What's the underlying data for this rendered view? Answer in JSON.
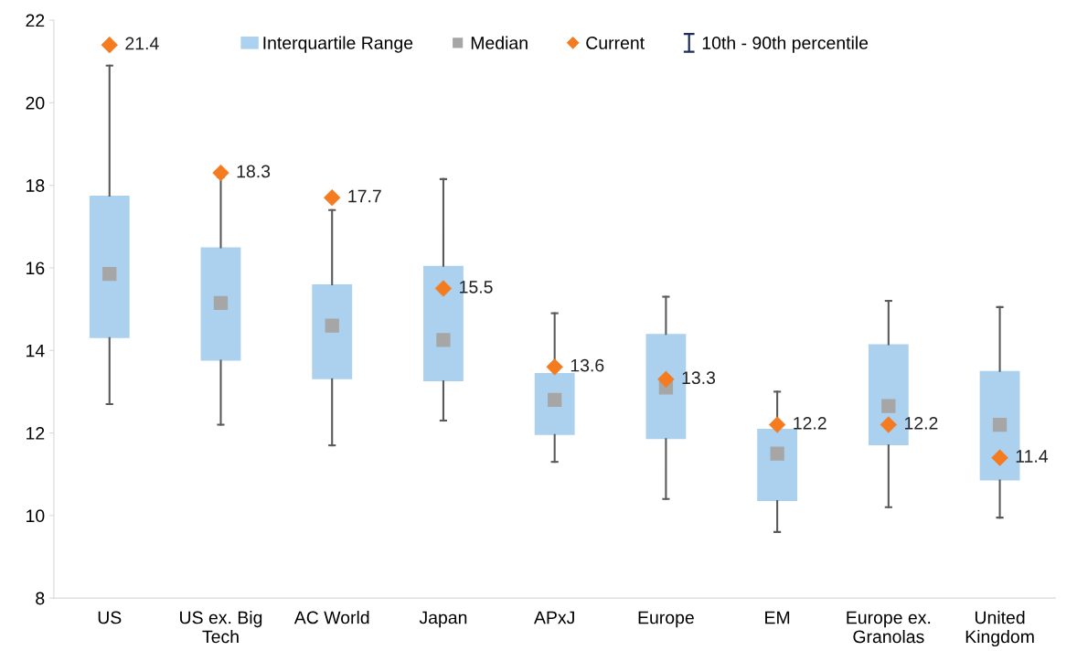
{
  "chart_data": {
    "type": "box",
    "categories": [
      "US",
      "US ex. Big\nTech",
      "AC World",
      "Japan",
      "APxJ",
      "Europe",
      "EM",
      "Europe ex.\nGranolas",
      "United\nKingdom"
    ],
    "series": [
      {
        "name": "Interquartile Range",
        "type": "box",
        "color": "#abd1ef",
        "boxes": [
          {
            "low": 12.7,
            "q1": 14.3,
            "median": 15.85,
            "q3": 17.75,
            "high": 20.9
          },
          {
            "low": 12.2,
            "q1": 13.75,
            "median": 15.15,
            "q3": 16.5,
            "high": 18.2
          },
          {
            "low": 11.7,
            "q1": 13.3,
            "median": 14.6,
            "q3": 15.6,
            "high": 17.4
          },
          {
            "low": 12.3,
            "q1": 13.25,
            "median": 14.25,
            "q3": 16.05,
            "high": 18.15
          },
          {
            "low": 11.3,
            "q1": 11.95,
            "median": 12.8,
            "q3": 13.45,
            "high": 14.9
          },
          {
            "low": 10.4,
            "q1": 11.85,
            "median": 13.1,
            "q3": 14.4,
            "high": 15.3
          },
          {
            "low": 9.6,
            "q1": 10.35,
            "median": 11.5,
            "q3": 12.1,
            "high": 13.0
          },
          {
            "low": 10.2,
            "q1": 11.7,
            "median": 12.65,
            "q3": 14.15,
            "high": 15.2
          },
          {
            "low": 9.95,
            "q1": 10.85,
            "median": 12.2,
            "q3": 13.5,
            "high": 15.05
          }
        ]
      },
      {
        "name": "Current",
        "type": "scatter",
        "color": "#f47b20",
        "marker": "diamond",
        "data_labels": true,
        "x": [
          "US",
          "US ex. Big\nTech",
          "AC World",
          "Japan",
          "APxJ",
          "Europe",
          "EM",
          "Europe ex.\nGranolas",
          "United\nKingdom"
        ],
        "values": [
          21.4,
          18.3,
          17.7,
          15.5,
          13.6,
          13.3,
          12.2,
          12.2,
          11.4
        ]
      }
    ],
    "annotations": [
      "Median",
      "10th - 90th percentile"
    ],
    "ylim": [
      8,
      22
    ],
    "yticks": [
      8,
      10,
      12,
      14,
      16,
      18,
      20,
      22
    ],
    "grid": false,
    "legend": "top"
  }
}
